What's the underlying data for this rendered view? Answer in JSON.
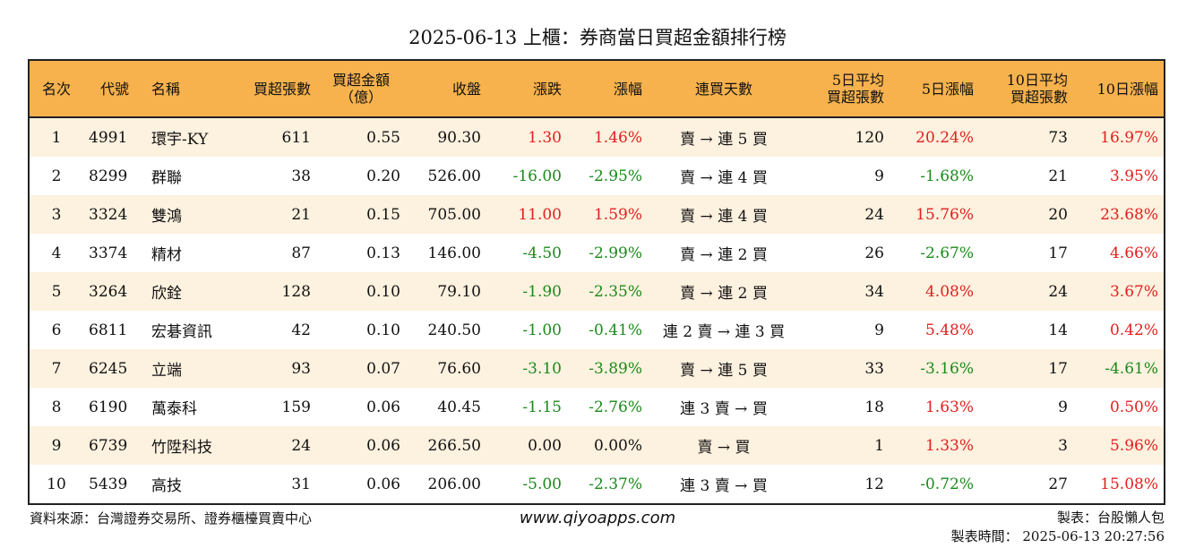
{
  "title": "2025-06-13 上櫃：券商當日買超金額排行榜",
  "headers": [
    {
      "key": "rank",
      "lines": [
        "名次"
      ]
    },
    {
      "key": "code",
      "lines": [
        "代號"
      ]
    },
    {
      "key": "name",
      "lines": [
        "名稱"
      ]
    },
    {
      "key": "buy_lots",
      "lines": [
        "買超張數"
      ]
    },
    {
      "key": "buy_amount",
      "lines": [
        "買超金額",
        "（億）"
      ]
    },
    {
      "key": "close",
      "lines": [
        "收盤"
      ]
    },
    {
      "key": "change",
      "lines": [
        "漲跌"
      ]
    },
    {
      "key": "change_pct",
      "lines": [
        "漲幅"
      ]
    },
    {
      "key": "streak",
      "lines": [
        "連買天數"
      ]
    },
    {
      "key": "avg5",
      "lines": [
        "5日平均",
        "買超張數"
      ]
    },
    {
      "key": "pct5",
      "lines": [
        "5日漲幅"
      ]
    },
    {
      "key": "avg10",
      "lines": [
        "10日平均",
        "買超張數"
      ]
    },
    {
      "key": "pct10",
      "lines": [
        "10日漲幅"
      ]
    }
  ],
  "rows": [
    {
      "rank": "1",
      "code": "4991",
      "name": "環宇-KY",
      "buy_lots": "611",
      "buy_amount": "0.55",
      "close": "90.30",
      "change": "1.30",
      "change_pct": "1.46%",
      "streak": "賣 → 連 5 買",
      "avg5": "120",
      "pct5": "20.24%",
      "avg10": "73",
      "pct10": "16.97%"
    },
    {
      "rank": "2",
      "code": "8299",
      "name": "群聯",
      "buy_lots": "38",
      "buy_amount": "0.20",
      "close": "526.00",
      "change": "-16.00",
      "change_pct": "-2.95%",
      "streak": "賣 → 連 4 買",
      "avg5": "9",
      "pct5": "-1.68%",
      "avg10": "21",
      "pct10": "3.95%"
    },
    {
      "rank": "3",
      "code": "3324",
      "name": "雙鴻",
      "buy_lots": "21",
      "buy_amount": "0.15",
      "close": "705.00",
      "change": "11.00",
      "change_pct": "1.59%",
      "streak": "賣 → 連 4 買",
      "avg5": "24",
      "pct5": "15.76%",
      "avg10": "20",
      "pct10": "23.68%"
    },
    {
      "rank": "4",
      "code": "3374",
      "name": "精材",
      "buy_lots": "87",
      "buy_amount": "0.13",
      "close": "146.00",
      "change": "-4.50",
      "change_pct": "-2.99%",
      "streak": "賣 → 連 2 買",
      "avg5": "26",
      "pct5": "-2.67%",
      "avg10": "17",
      "pct10": "4.66%"
    },
    {
      "rank": "5",
      "code": "3264",
      "name": "欣銓",
      "buy_lots": "128",
      "buy_amount": "0.10",
      "close": "79.10",
      "change": "-1.90",
      "change_pct": "-2.35%",
      "streak": "賣 → 連 2 買",
      "avg5": "34",
      "pct5": "4.08%",
      "avg10": "24",
      "pct10": "3.67%"
    },
    {
      "rank": "6",
      "code": "6811",
      "name": "宏碁資訊",
      "buy_lots": "42",
      "buy_amount": "0.10",
      "close": "240.50",
      "change": "-1.00",
      "change_pct": "-0.41%",
      "streak": "連 2 賣 → 連 3 買",
      "avg5": "9",
      "pct5": "5.48%",
      "avg10": "14",
      "pct10": "0.42%"
    },
    {
      "rank": "7",
      "code": "6245",
      "name": "立端",
      "buy_lots": "93",
      "buy_amount": "0.07",
      "close": "76.60",
      "change": "-3.10",
      "change_pct": "-3.89%",
      "streak": "賣 → 連 5 買",
      "avg5": "33",
      "pct5": "-3.16%",
      "avg10": "17",
      "pct10": "-4.61%"
    },
    {
      "rank": "8",
      "code": "6190",
      "name": "萬泰科",
      "buy_lots": "159",
      "buy_amount": "0.06",
      "close": "40.45",
      "change": "-1.15",
      "change_pct": "-2.76%",
      "streak": "連 3 賣 → 買",
      "avg5": "18",
      "pct5": "1.63%",
      "avg10": "9",
      "pct10": "0.50%"
    },
    {
      "rank": "9",
      "code": "6739",
      "name": "竹陞科技",
      "buy_lots": "24",
      "buy_amount": "0.06",
      "close": "266.50",
      "change": "0.00",
      "change_pct": "0.00%",
      "streak": "賣 → 買",
      "avg5": "1",
      "pct5": "1.33%",
      "avg10": "3",
      "pct10": "5.96%"
    },
    {
      "rank": "10",
      "code": "5439",
      "name": "高技",
      "buy_lots": "31",
      "buy_amount": "0.06",
      "close": "206.00",
      "change": "-5.00",
      "change_pct": "-2.37%",
      "streak": "連 3 賣 → 買",
      "avg5": "12",
      "pct5": "-0.72%",
      "avg10": "27",
      "pct10": "15.08%"
    }
  ],
  "footer": {
    "source": "資料來源：台灣證券交易所、證券櫃檯買賣中心",
    "url": "www.qiyoapps.com",
    "maker": "製表：台股懶人包",
    "time": "製表時間： 2025-06-13 20:27:56"
  },
  "colors": {
    "header_bg": "#f7b24d",
    "row_alt_bg": "#fdf1df",
    "positive": "#e0201f",
    "negative": "#1a8a1a"
  }
}
